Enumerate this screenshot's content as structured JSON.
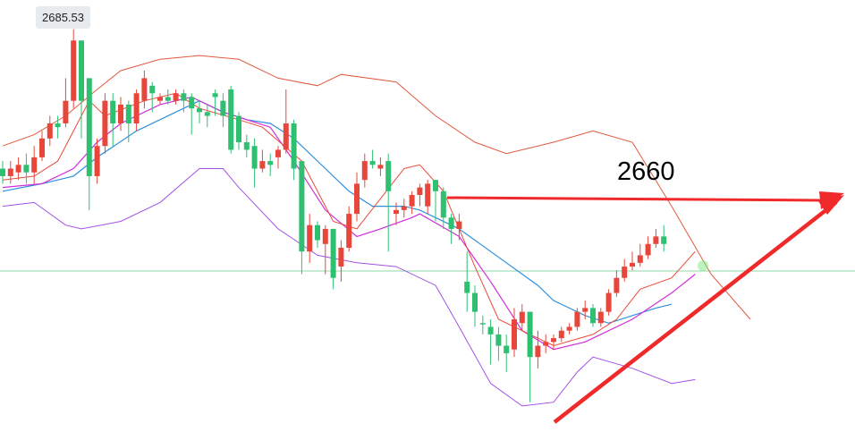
{
  "chart_data": {
    "type": "candlestick",
    "title": "",
    "xlabel": "",
    "ylabel": "",
    "ylim": [
      2633,
      2687
    ],
    "high_marker": "2685.53",
    "annotation": "2660",
    "colors": {
      "up": "#e8463a",
      "down": "#2fbf71",
      "bb_outer": "#e05a40",
      "bb_lower": "#a351e8",
      "ma_short": "#ea4b3c",
      "ma_mid": "#d02ed8",
      "ma_long": "#2f8fdc",
      "hline": "#8ed9a8",
      "arrow": "#f02a2a"
    },
    "candles": [
      {
        "open": 2667.0,
        "close": 2666.0,
        "high": 2668.0,
        "low": 2665.0,
        "dir": "down"
      },
      {
        "open": 2666.0,
        "close": 2667.0,
        "high": 2668.0,
        "low": 2665.0,
        "dir": "up"
      },
      {
        "open": 2666.5,
        "close": 2667.5,
        "high": 2668.5,
        "low": 2665.5,
        "dir": "up"
      },
      {
        "open": 2667.5,
        "close": 2666.5,
        "high": 2669.0,
        "low": 2665.0,
        "dir": "down"
      },
      {
        "open": 2666.5,
        "close": 2668.5,
        "high": 2670.0,
        "low": 2665.0,
        "dir": "up"
      },
      {
        "open": 2668.5,
        "close": 2671.0,
        "high": 2672.0,
        "low": 2668.0,
        "dir": "up"
      },
      {
        "open": 2671.0,
        "close": 2673.0,
        "high": 2674.0,
        "low": 2670.0,
        "dir": "up"
      },
      {
        "open": 2673.0,
        "close": 2672.5,
        "high": 2674.0,
        "low": 2671.0,
        "dir": "down"
      },
      {
        "open": 2673.0,
        "close": 2676.0,
        "high": 2679.0,
        "low": 2672.5,
        "dir": "up"
      },
      {
        "open": 2676.0,
        "close": 2684.0,
        "high": 2685.5,
        "low": 2675.0,
        "dir": "up"
      },
      {
        "open": 2684.0,
        "close": 2676.0,
        "high": 2684.0,
        "low": 2671.0,
        "dir": "down"
      },
      {
        "open": 2679.0,
        "close": 2666.0,
        "high": 2679.0,
        "low": 2661.5,
        "dir": "down"
      },
      {
        "open": 2666.0,
        "close": 2670.0,
        "high": 2671.0,
        "low": 2665.0,
        "dir": "up"
      },
      {
        "open": 2670.0,
        "close": 2676.0,
        "high": 2677.0,
        "low": 2669.0,
        "dir": "up"
      },
      {
        "open": 2676.0,
        "close": 2673.0,
        "high": 2677.0,
        "low": 2670.0,
        "dir": "down"
      },
      {
        "open": 2673.0,
        "close": 2675.5,
        "high": 2676.5,
        "low": 2672.0,
        "dir": "up"
      },
      {
        "open": 2675.5,
        "close": 2673.0,
        "high": 2676.0,
        "low": 2670.5,
        "dir": "down"
      },
      {
        "open": 2673.0,
        "close": 2677.0,
        "high": 2677.5,
        "low": 2672.0,
        "dir": "up"
      },
      {
        "open": 2676.0,
        "close": 2679.0,
        "high": 2680.0,
        "low": 2675.0,
        "dir": "up"
      },
      {
        "open": 2678.0,
        "close": 2677.0,
        "high": 2678.5,
        "low": 2674.5,
        "dir": "down"
      },
      {
        "open": 2676.0,
        "close": 2676.5,
        "high": 2677.0,
        "low": 2675.5,
        "dir": "up"
      },
      {
        "open": 2676.5,
        "close": 2676.0,
        "high": 2677.5,
        "low": 2675.5,
        "dir": "down"
      },
      {
        "open": 2676.0,
        "close": 2677.0,
        "high": 2677.5,
        "low": 2675.5,
        "dir": "up"
      },
      {
        "open": 2677.0,
        "close": 2676.0,
        "high": 2677.5,
        "low": 2674.5,
        "dir": "down"
      },
      {
        "open": 2676.5,
        "close": 2675.0,
        "high": 2677.0,
        "low": 2671.5,
        "dir": "down"
      },
      {
        "open": 2675.0,
        "close": 2674.5,
        "high": 2676.0,
        "low": 2673.0,
        "dir": "down"
      },
      {
        "open": 2674.5,
        "close": 2674.0,
        "high": 2675.5,
        "low": 2672.5,
        "dir": "down"
      },
      {
        "open": 2677.0,
        "close": 2676.5,
        "high": 2677.5,
        "low": 2674.0,
        "dir": "down"
      },
      {
        "open": 2676.0,
        "close": 2674.0,
        "high": 2677.0,
        "low": 2672.5,
        "dir": "down"
      },
      {
        "open": 2677.5,
        "close": 2669.5,
        "high": 2678.0,
        "low": 2669.0,
        "dir": "down"
      },
      {
        "open": 2674.0,
        "close": 2670.5,
        "high": 2674.5,
        "low": 2669.5,
        "dir": "down"
      },
      {
        "open": 2670.5,
        "close": 2669.5,
        "high": 2671.5,
        "low": 2668.5,
        "dir": "down"
      },
      {
        "open": 2670.0,
        "close": 2667.0,
        "high": 2671.0,
        "low": 2664.5,
        "dir": "down"
      },
      {
        "open": 2667.0,
        "close": 2668.0,
        "high": 2669.5,
        "low": 2666.5,
        "dir": "up"
      },
      {
        "open": 2668.0,
        "close": 2667.5,
        "high": 2669.0,
        "low": 2666.0,
        "dir": "down"
      },
      {
        "open": 2668.5,
        "close": 2669.5,
        "high": 2670.0,
        "low": 2667.0,
        "dir": "up"
      },
      {
        "open": 2669.5,
        "close": 2673.0,
        "high": 2677.5,
        "low": 2669.0,
        "dir": "up"
      },
      {
        "open": 2673.0,
        "close": 2667.0,
        "high": 2673.5,
        "low": 2665.5,
        "dir": "down"
      },
      {
        "open": 2668.0,
        "close": 2656.0,
        "high": 2668.0,
        "low": 2653.0,
        "dir": "down"
      },
      {
        "open": 2656.0,
        "close": 2659.5,
        "high": 2661.0,
        "low": 2654.5,
        "dir": "up"
      },
      {
        "open": 2659.5,
        "close": 2657.5,
        "high": 2660.0,
        "low": 2656.5,
        "dir": "down"
      },
      {
        "open": 2657.0,
        "close": 2659.0,
        "high": 2659.5,
        "low": 2653.0,
        "dir": "up"
      },
      {
        "open": 2659.0,
        "close": 2652.5,
        "high": 2659.0,
        "low": 2651.0,
        "dir": "down"
      },
      {
        "open": 2654.0,
        "close": 2656.5,
        "high": 2657.5,
        "low": 2652.0,
        "dir": "up"
      },
      {
        "open": 2656.5,
        "close": 2661.0,
        "high": 2662.0,
        "low": 2656.0,
        "dir": "up"
      },
      {
        "open": 2661.0,
        "close": 2665.0,
        "high": 2666.5,
        "low": 2660.0,
        "dir": "up"
      },
      {
        "open": 2665.5,
        "close": 2668.0,
        "high": 2669.0,
        "low": 2664.5,
        "dir": "up"
      },
      {
        "open": 2668.0,
        "close": 2667.5,
        "high": 2669.5,
        "low": 2667.0,
        "dir": "down"
      },
      {
        "open": 2667.0,
        "close": 2667.5,
        "high": 2668.5,
        "low": 2666.0,
        "dir": "up"
      },
      {
        "open": 2668.0,
        "close": 2664.0,
        "high": 2669.0,
        "low": 2656.0,
        "dir": "down"
      },
      {
        "open": 2661.0,
        "close": 2661.5,
        "high": 2662.5,
        "low": 2659.5,
        "dir": "up"
      },
      {
        "open": 2661.5,
        "close": 2662.0,
        "high": 2663.0,
        "low": 2660.5,
        "dir": "up"
      },
      {
        "open": 2662.0,
        "close": 2663.5,
        "high": 2664.0,
        "low": 2661.0,
        "dir": "up"
      },
      {
        "open": 2663.5,
        "close": 2664.5,
        "high": 2665.0,
        "low": 2662.0,
        "dir": "up"
      },
      {
        "open": 2662.0,
        "close": 2665.0,
        "high": 2665.5,
        "low": 2661.0,
        "dir": "up"
      },
      {
        "open": 2665.5,
        "close": 2664.0,
        "high": 2665.5,
        "low": 2660.0,
        "dir": "down"
      },
      {
        "open": 2664.0,
        "close": 2660.5,
        "high": 2664.5,
        "low": 2659.0,
        "dir": "down"
      },
      {
        "open": 2660.5,
        "close": 2659.0,
        "high": 2661.0,
        "low": 2657.0,
        "dir": "down"
      },
      {
        "open": 2659.0,
        "close": 2660.0,
        "high": 2661.0,
        "low": 2657.5,
        "dir": "up"
      },
      {
        "open": 2652.0,
        "close": 2650.5,
        "high": 2656.0,
        "low": 2648.0,
        "dir": "down"
      },
      {
        "open": 2650.5,
        "close": 2648.0,
        "high": 2651.5,
        "low": 2646.0,
        "dir": "down"
      },
      {
        "open": 2646.5,
        "close": 2646.5,
        "high": 2647.5,
        "low": 2645.0,
        "dir": "down"
      },
      {
        "open": 2646.0,
        "close": 2645.0,
        "high": 2647.0,
        "low": 2641.0,
        "dir": "down"
      },
      {
        "open": 2645.0,
        "close": 2643.5,
        "high": 2646.0,
        "low": 2641.5,
        "dir": "down"
      },
      {
        "open": 2643.5,
        "close": 2642.5,
        "high": 2645.0,
        "low": 2640.0,
        "dir": "down"
      },
      {
        "open": 2643.0,
        "close": 2647.0,
        "high": 2648.5,
        "low": 2642.0,
        "dir": "up"
      },
      {
        "open": 2646.5,
        "close": 2648.0,
        "high": 2649.0,
        "low": 2645.5,
        "dir": "up"
      },
      {
        "open": 2648.0,
        "close": 2642.0,
        "high": 2648.0,
        "low": 2636.0,
        "dir": "down"
      },
      {
        "open": 2642.0,
        "close": 2643.5,
        "high": 2645.5,
        "low": 2640.5,
        "dir": "up"
      },
      {
        "open": 2643.5,
        "close": 2644.0,
        "high": 2645.0,
        "low": 2642.5,
        "dir": "up"
      },
      {
        "open": 2644.0,
        "close": 2644.5,
        "high": 2645.0,
        "low": 2643.0,
        "dir": "up"
      },
      {
        "open": 2644.5,
        "close": 2645.5,
        "high": 2646.0,
        "low": 2644.0,
        "dir": "up"
      },
      {
        "open": 2645.5,
        "close": 2646.0,
        "high": 2646.5,
        "low": 2645.0,
        "dir": "up"
      },
      {
        "open": 2646.0,
        "close": 2648.0,
        "high": 2648.5,
        "low": 2645.5,
        "dir": "up"
      },
      {
        "open": 2648.0,
        "close": 2648.5,
        "high": 2649.5,
        "low": 2647.0,
        "dir": "up"
      },
      {
        "open": 2648.5,
        "close": 2646.5,
        "high": 2649.0,
        "low": 2646.0,
        "dir": "down"
      },
      {
        "open": 2646.5,
        "close": 2648.0,
        "high": 2648.5,
        "low": 2646.0,
        "dir": "up"
      },
      {
        "open": 2648.0,
        "close": 2650.5,
        "high": 2651.0,
        "low": 2647.5,
        "dir": "up"
      },
      {
        "open": 2650.5,
        "close": 2652.5,
        "high": 2653.5,
        "low": 2650.0,
        "dir": "up"
      },
      {
        "open": 2652.5,
        "close": 2654.0,
        "high": 2655.0,
        "low": 2652.0,
        "dir": "up"
      },
      {
        "open": 2654.0,
        "close": 2654.5,
        "high": 2656.0,
        "low": 2653.5,
        "dir": "up"
      },
      {
        "open": 2654.5,
        "close": 2655.5,
        "high": 2657.0,
        "low": 2654.0,
        "dir": "up"
      },
      {
        "open": 2655.5,
        "close": 2657.0,
        "high": 2658.0,
        "low": 2655.0,
        "dir": "up"
      },
      {
        "open": 2657.0,
        "close": 2658.0,
        "high": 2659.0,
        "low": 2656.5,
        "dir": "up"
      },
      {
        "open": 2658.0,
        "close": 2657.0,
        "high": 2659.5,
        "low": 2656.0,
        "dir": "down"
      }
    ],
    "bb_upper": [
      [
        2670.0,
        0
      ],
      [
        2671.5,
        4
      ],
      [
        2674.0,
        8
      ],
      [
        2677.5,
        12
      ],
      [
        2680.0,
        15
      ],
      [
        2681.5,
        20
      ],
      [
        2682.0,
        25
      ],
      [
        2681.5,
        30
      ],
      [
        2679.0,
        35
      ],
      [
        2678.0,
        40
      ],
      [
        2679.5,
        43
      ],
      [
        2678.5,
        50
      ],
      [
        2674.0,
        55
      ],
      [
        2670.5,
        60
      ],
      [
        2669.0,
        64
      ],
      [
        2670.5,
        70
      ],
      [
        2672.0,
        75
      ],
      [
        2670.5,
        80
      ],
      [
        2662.0,
        85
      ],
      [
        2653.0,
        90
      ],
      [
        2647.0,
        95
      ]
    ],
    "bb_lower": [
      [
        2662.0,
        0
      ],
      [
        2662.5,
        4
      ],
      [
        2659.5,
        8
      ],
      [
        2659.0,
        10
      ],
      [
        2660.0,
        15
      ],
      [
        2662.5,
        20
      ],
      [
        2667.0,
        25
      ],
      [
        2667.0,
        28
      ],
      [
        2664.5,
        30
      ],
      [
        2659.0,
        35
      ],
      [
        2655.5,
        40
      ],
      [
        2654.5,
        45
      ],
      [
        2654.0,
        50
      ],
      [
        2651.5,
        55
      ],
      [
        2646.0,
        58
      ],
      [
        2638.5,
        62
      ],
      [
        2635.5,
        66
      ],
      [
        2636.0,
        70
      ],
      [
        2640.0,
        73
      ],
      [
        2642.0,
        75
      ],
      [
        2640.5,
        80
      ],
      [
        2638.5,
        85
      ],
      [
        2639.0,
        88
      ]
    ],
    "ma_short": [
      [
        2665.5,
        0
      ],
      [
        2666.0,
        4
      ],
      [
        2668.0,
        7
      ],
      [
        2672.0,
        9
      ],
      [
        2676.0,
        11
      ],
      [
        2674.0,
        13
      ],
      [
        2676.0,
        18
      ],
      [
        2677.0,
        22
      ],
      [
        2675.0,
        25
      ],
      [
        2673.5,
        30
      ],
      [
        2672.5,
        33
      ],
      [
        2668.0,
        38
      ],
      [
        2660.0,
        42
      ],
      [
        2659.0,
        45
      ],
      [
        2663.0,
        48
      ],
      [
        2667.0,
        51
      ],
      [
        2667.5,
        53
      ],
      [
        2664.0,
        56
      ],
      [
        2654.0,
        60
      ],
      [
        2647.0,
        63
      ],
      [
        2645.0,
        67
      ],
      [
        2643.5,
        70
      ],
      [
        2645.0,
        75
      ],
      [
        2647.0,
        78
      ],
      [
        2651.0,
        81
      ],
      [
        2652.5,
        85
      ],
      [
        2656.0,
        88
      ]
    ],
    "ma_mid": [
      [
        2664.5,
        0
      ],
      [
        2665.0,
        5
      ],
      [
        2667.0,
        9
      ],
      [
        2670.5,
        12
      ],
      [
        2673.0,
        15
      ],
      [
        2675.5,
        20
      ],
      [
        2676.5,
        24
      ],
      [
        2674.5,
        28
      ],
      [
        2673.5,
        31
      ],
      [
        2672.5,
        34
      ],
      [
        2668.0,
        37
      ],
      [
        2661.5,
        41
      ],
      [
        2658.0,
        45
      ],
      [
        2659.0,
        48
      ],
      [
        2660.5,
        52
      ],
      [
        2661.0,
        53
      ],
      [
        2658.0,
        58
      ],
      [
        2652.0,
        62
      ],
      [
        2645.5,
        66
      ],
      [
        2643.0,
        70
      ],
      [
        2644.0,
        74
      ],
      [
        2647.0,
        80
      ],
      [
        2650.5,
        85
      ],
      [
        2653.0,
        88
      ]
    ],
    "ma_long": [
      [
        2664.0,
        0
      ],
      [
        2665.0,
        5
      ],
      [
        2666.0,
        9
      ],
      [
        2668.5,
        12
      ],
      [
        2672.0,
        17
      ],
      [
        2674.5,
        22
      ],
      [
        2676.0,
        25
      ],
      [
        2674.5,
        28
      ],
      [
        2673.5,
        31
      ],
      [
        2673.0,
        34
      ],
      [
        2671.0,
        37
      ],
      [
        2667.0,
        41
      ],
      [
        2664.0,
        44
      ],
      [
        2662.0,
        47
      ],
      [
        2662.0,
        51
      ],
      [
        2661.5,
        53
      ],
      [
        2659.0,
        58
      ],
      [
        2656.0,
        62
      ],
      [
        2651.5,
        68
      ],
      [
        2649.5,
        70
      ],
      [
        2647.5,
        74
      ],
      [
        2646.5,
        77
      ],
      [
        2648.5,
        83
      ],
      [
        2649.0,
        85
      ]
    ]
  }
}
